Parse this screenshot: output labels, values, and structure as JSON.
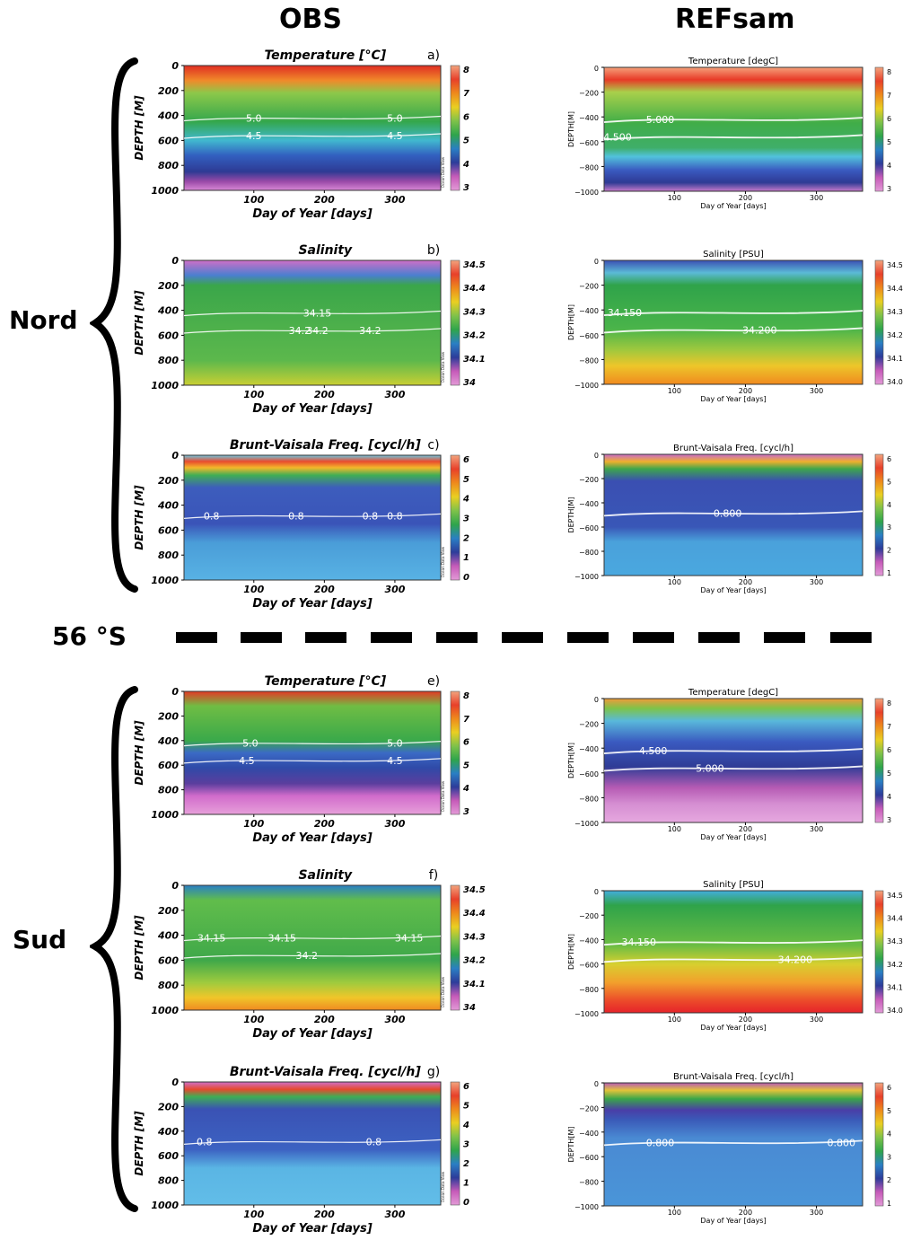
{
  "column_titles": {
    "obs": "OBS",
    "model": "REFsam"
  },
  "regions": {
    "north": "Nord",
    "south": "Sud"
  },
  "separator_label": "56 °S",
  "obs_axes": {
    "ylabel": "DEPTH [M]",
    "xlabel": "Day of Year [days]",
    "yticks": [
      "0",
      "200",
      "400",
      "600",
      "800",
      "1000"
    ],
    "xticks": [
      "100",
      "200",
      "300"
    ],
    "watermark": "Ocean Data View"
  },
  "model_axes": {
    "ylabel": "DEPTH[M]",
    "xlabel": "Day of Year [days]",
    "yticks": [
      "0",
      "−200",
      "−400",
      "−600",
      "−800",
      "−1000"
    ],
    "xticks": [
      "100",
      "200",
      "300"
    ]
  },
  "chart_data": [
    {
      "type": "heatmap",
      "panel": "OBS Nord",
      "title": "Temperature [°C]",
      "letter": "a)",
      "xlim": [
        1,
        365
      ],
      "ylim": [
        1000,
        0
      ],
      "colorbar": [
        "8",
        "7",
        "6",
        "5",
        "4",
        "3"
      ],
      "contours": [
        {
          "level": "5.0",
          "x": [
            100,
            300
          ]
        },
        {
          "level": "4.5",
          "x": [
            100,
            300
          ]
        }
      ]
    },
    {
      "type": "heatmap",
      "panel": "OBS Nord",
      "title": "Salinity",
      "letter": "b)",
      "xlim": [
        1,
        365
      ],
      "ylim": [
        1000,
        0
      ],
      "colorbar": [
        "34.5",
        "34.4",
        "34.3",
        "34.2",
        "34.1",
        "34"
      ],
      "contours": [
        {
          "level": "34.15",
          "x": [
            190
          ]
        },
        {
          "level": "34.2",
          "x": [
            190,
            265,
            165
          ]
        }
      ]
    },
    {
      "type": "heatmap",
      "panel": "OBS Nord",
      "title": "Brunt-Vaisala Freq. [cycl/h]",
      "letter": "c)",
      "xlim": [
        1,
        365
      ],
      "ylim": [
        1000,
        0
      ],
      "colorbar": [
        "6",
        "5",
        "4",
        "3",
        "2",
        "1",
        "0"
      ],
      "contours": [
        {
          "level": "0.8",
          "x": [
            265,
            40,
            160,
            300
          ]
        }
      ]
    },
    {
      "type": "heatmap",
      "panel": "REFsam Nord",
      "title": "Temperature [degC]",
      "xlim": [
        1,
        365
      ],
      "ylim": [
        -1000,
        0
      ],
      "colorbar": [
        "8",
        "7",
        "6",
        "5",
        "4",
        "3"
      ],
      "contours": [
        {
          "level": "5.000",
          "x": [
            80
          ]
        },
        {
          "level": "4.500",
          "x": [
            20
          ]
        }
      ]
    },
    {
      "type": "heatmap",
      "panel": "REFsam Nord",
      "title": "Salinity [PSU]",
      "xlim": [
        1,
        365
      ],
      "ylim": [
        -1000,
        0
      ],
      "colorbar": [
        "34.5",
        "34.4",
        "34.3",
        "34.2",
        "34.1",
        "34.0"
      ],
      "contours": [
        {
          "level": "34.150",
          "x": [
            30
          ]
        },
        {
          "level": "34.200",
          "x": [
            220
          ]
        }
      ]
    },
    {
      "type": "heatmap",
      "panel": "REFsam Nord",
      "title": "Brunt-Vaisala Freq. [cycl/h]",
      "xlim": [
        1,
        365
      ],
      "ylim": [
        -1000,
        0
      ],
      "colorbar": [
        "6",
        "5",
        "4",
        "3",
        "2",
        "1"
      ],
      "contours": [
        {
          "level": "0.800",
          "x": [
            175
          ]
        }
      ]
    },
    {
      "type": "heatmap",
      "panel": "OBS Sud",
      "title": "Temperature [°C]",
      "letter": "e)",
      "xlim": [
        1,
        365
      ],
      "ylim": [
        1000,
        0
      ],
      "colorbar": [
        "8",
        "7",
        "6",
        "5",
        "4",
        "3"
      ],
      "contours": [
        {
          "level": "5.0",
          "x": [
            95,
            300
          ]
        },
        {
          "level": "4.5",
          "x": [
            90,
            300
          ]
        }
      ]
    },
    {
      "type": "heatmap",
      "panel": "OBS Sud",
      "title": "Salinity",
      "letter": "f)",
      "xlim": [
        1,
        365
      ],
      "ylim": [
        1000,
        0
      ],
      "colorbar": [
        "34.5",
        "34.4",
        "34.3",
        "34.2",
        "34.1",
        "34"
      ],
      "contours": [
        {
          "level": "34.15",
          "x": [
            140,
            40,
            320
          ]
        },
        {
          "level": "34.2",
          "x": [
            175
          ]
        }
      ]
    },
    {
      "type": "heatmap",
      "panel": "OBS Sud",
      "title": "Brunt-Vaisala Freq. [cycl/h]",
      "letter": "g)",
      "xlim": [
        1,
        365
      ],
      "ylim": [
        1000,
        0
      ],
      "colorbar": [
        "6",
        "5",
        "4",
        "3",
        "2",
        "1",
        "0"
      ],
      "contours": [
        {
          "level": "0.8",
          "x": [
            30,
            270
          ]
        }
      ]
    },
    {
      "type": "heatmap",
      "panel": "REFsam Sud",
      "title": "Temperature [degC]",
      "xlim": [
        1,
        365
      ],
      "ylim": [
        -1000,
        0
      ],
      "colorbar": [
        "8",
        "7",
        "6",
        "5",
        "4",
        "3"
      ],
      "contours": [
        {
          "level": "4.500",
          "x": [
            70
          ]
        },
        {
          "level": "5.000",
          "x": [
            150
          ]
        }
      ]
    },
    {
      "type": "heatmap",
      "panel": "REFsam Sud",
      "title": "Salinity [PSU]",
      "xlim": [
        1,
        365
      ],
      "ylim": [
        -1000,
        0
      ],
      "colorbar": [
        "34.5",
        "34.4",
        "34.3",
        "34.2",
        "34.1",
        "34.0"
      ],
      "contours": [
        {
          "level": "34.150",
          "x": [
            50
          ]
        },
        {
          "level": "34.200",
          "x": [
            270
          ]
        }
      ]
    },
    {
      "type": "heatmap",
      "panel": "REFsam Sud",
      "title": "Brunt-Vaisala Freq. [cycl/h]",
      "xlim": [
        1,
        365
      ],
      "ylim": [
        -1000,
        0
      ],
      "colorbar": [
        "6",
        "5",
        "4",
        "3",
        "2",
        "1"
      ],
      "contours": [
        {
          "level": "0.800",
          "x": [
            80,
            335
          ]
        }
      ]
    }
  ]
}
